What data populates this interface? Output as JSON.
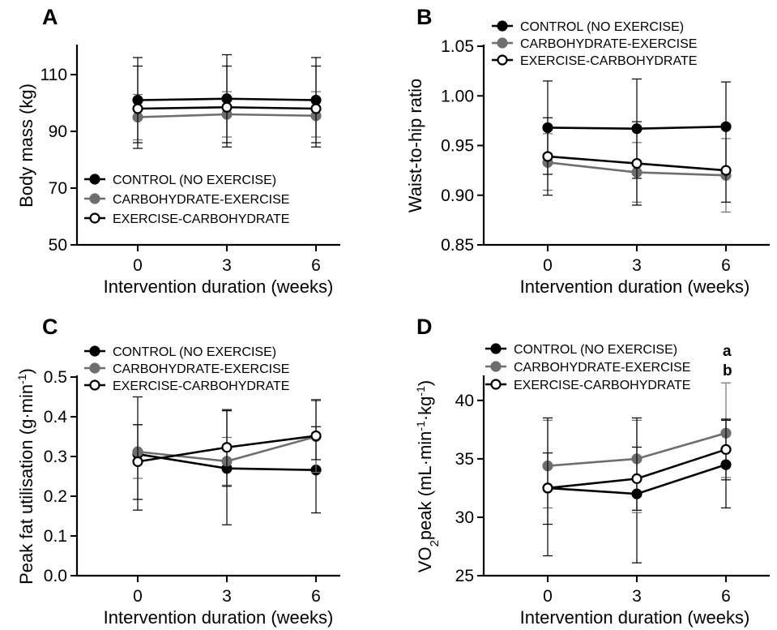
{
  "legend_labels": [
    "CONTROL (NO EXERCISE)",
    "CARBOHYDRATE-EXERCISE",
    "EXERCISE-CARBOHYDRATE"
  ],
  "series_colors": [
    "#000000",
    "#6e6e6e",
    "#000000"
  ],
  "marker_fills": [
    "#000000",
    "#6e6e6e",
    "#ffffff"
  ],
  "chart_data": [
    {
      "panel": "A",
      "type": "line",
      "x": [
        0,
        3,
        6
      ],
      "xlabel": "Intervention duration (weeks)",
      "ylabel": "Body mass (kg)",
      "ylim": [
        50,
        120
      ],
      "yticks": [
        50,
        70,
        90,
        110
      ],
      "legend_position": "bottom-left",
      "series": [
        {
          "name": "CONTROL (NO EXERCISE)",
          "values": [
            101,
            101.5,
            101
          ],
          "err_upper": [
            116,
            117,
            116
          ],
          "err_lower": [
            86,
            86,
            86
          ]
        },
        {
          "name": "CARBOHYDRATE-EXERCISE",
          "values": [
            95,
            96,
            95.5
          ],
          "err_upper": [
            103,
            104,
            104
          ],
          "err_lower": [
            87,
            88,
            88
          ]
        },
        {
          "name": "EXERCISE-CARBOHYDRATE",
          "values": [
            98,
            98.5,
            98
          ],
          "err_upper": [
            113,
            113,
            113
          ],
          "err_lower": [
            84,
            84.5,
            84.5
          ]
        }
      ]
    },
    {
      "panel": "B",
      "type": "line",
      "x": [
        0,
        3,
        6
      ],
      "xlabel": "Intervention duration (weeks)",
      "ylabel": "Waist-to-hip ratio",
      "ylim": [
        0.85,
        1.05
      ],
      "yticks": [
        "0.85",
        "0.90",
        "0.95",
        "1.00",
        "1.05"
      ],
      "legend_position": "top",
      "series": [
        {
          "name": "CONTROL (NO EXERCISE)",
          "values": [
            0.968,
            0.967,
            0.969
          ],
          "err_upper": [
            1.015,
            1.017,
            1.014
          ],
          "err_lower": [
            0.921,
            0.917,
            0.924
          ]
        },
        {
          "name": "CARBOHYDRATE-EXERCISE",
          "values": [
            0.933,
            0.923,
            0.92
          ],
          "err_upper": [
            0.962,
            0.953,
            0.957
          ],
          "err_lower": [
            0.905,
            0.893,
            0.883
          ]
        },
        {
          "name": "EXERCISE-CARBOHYDRATE",
          "values": [
            0.939,
            0.932,
            0.925
          ],
          "err_upper": [
            0.978,
            0.974,
            0.967
          ],
          "err_lower": [
            0.9,
            0.89,
            0.893
          ]
        }
      ]
    },
    {
      "panel": "C",
      "type": "line",
      "x": [
        0,
        3,
        6
      ],
      "xlabel": "Intervention duration (weeks)",
      "ylabel_main": "Peak fat utilisation (g·min",
      "ylabel_sup": "-1",
      "ylabel_tail": ")",
      "ylim": [
        0,
        0.5
      ],
      "yticks": [
        "0.0",
        "0.1",
        "0.2",
        "0.3",
        "0.4",
        "0.5"
      ],
      "legend_position": "top",
      "series": [
        {
          "name": "CONTROL (NO EXERCISE)",
          "values": [
            0.306,
            0.27,
            0.266
          ],
          "err_upper": [
            0.45,
            0.415,
            0.375
          ],
          "err_lower": [
            0.165,
            0.128,
            0.158
          ]
        },
        {
          "name": "CARBOHYDRATE-EXERCISE",
          "values": [
            0.312,
            0.288,
            0.35
          ],
          "err_upper": [
            0.38,
            0.348,
            0.44
          ],
          "err_lower": [
            0.245,
            0.228,
            0.26
          ]
        },
        {
          "name": "EXERCISE-CARBOHYDRATE",
          "values": [
            0.287,
            0.323,
            0.352
          ],
          "err_upper": [
            0.38,
            0.418,
            0.443
          ],
          "err_lower": [
            0.192,
            0.225,
            0.292
          ]
        }
      ]
    },
    {
      "panel": "D",
      "type": "line",
      "x": [
        0,
        3,
        6
      ],
      "xlabel": "Intervention duration (weeks)",
      "ylabel_parts": [
        "VO",
        "2",
        "peak (mL·min",
        "-1",
        "·kg",
        "-1",
        ")"
      ],
      "ylim": [
        25,
        42
      ],
      "yticks": [
        25,
        30,
        35,
        40
      ],
      "legend_position": "top",
      "annotations": [
        "a",
        "b"
      ],
      "series": [
        {
          "name": "CONTROL (NO EXERCISE)",
          "values": [
            32.5,
            32,
            34.5
          ],
          "err_upper": [
            35.5,
            36,
            38.3
          ],
          "err_lower": [
            29.4,
            26.1,
            30.8
          ]
        },
        {
          "name": "CARBOHYDRATE-EXERCISE",
          "values": [
            34.4,
            35,
            37.2
          ],
          "err_upper": [
            38.3,
            38.3,
            41.5
          ],
          "err_lower": [
            30.8,
            30.4,
            33.4
          ]
        },
        {
          "name": "EXERCISE-CARBOHYDRATE",
          "values": [
            32.5,
            33.3,
            35.8
          ],
          "err_upper": [
            38.5,
            38.5,
            38.4
          ],
          "err_lower": [
            26.7,
            30.6,
            33.2
          ]
        }
      ]
    }
  ]
}
